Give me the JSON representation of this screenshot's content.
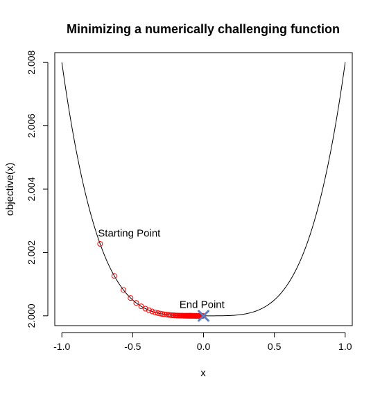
{
  "chart_data": {
    "type": "line",
    "title": "Minimizing a numerically challenging function",
    "xlabel": "x",
    "ylabel": "objective(x)",
    "xlim": [
      -1.05,
      1.05
    ],
    "ylim": [
      1.99969,
      2.00831
    ],
    "x_ticks": [
      -1.0,
      -0.5,
      0.0,
      0.5,
      1.0
    ],
    "x_tick_labels": [
      "-1.0",
      "-0.5",
      "0.0",
      "0.5",
      "1.0"
    ],
    "y_ticks": [
      2.0,
      2.002,
      2.004,
      2.006,
      2.008
    ],
    "y_tick_labels": [
      "2.000",
      "2.002",
      "2.004",
      "2.006",
      "2.008"
    ],
    "grid": false,
    "legend": "none",
    "curve": {
      "name": "",
      "color": "#000000",
      "x_range": [
        -1.0,
        1.0
      ],
      "points": [
        [
          -1.0,
          2.008
        ],
        [
          -0.9,
          2.00525
        ],
        [
          -0.8,
          2.00328
        ],
        [
          -0.73,
          2.00227
        ],
        [
          -0.6,
          2.00104
        ],
        [
          -0.5,
          2.0005
        ],
        [
          -0.4,
          2.0002
        ],
        [
          -0.3,
          2.00006
        ],
        [
          -0.2,
          2.000013
        ],
        [
          -0.1,
          2.0000008
        ],
        [
          0.0,
          2.0
        ],
        [
          0.1,
          2.0000008
        ],
        [
          0.2,
          2.000013
        ],
        [
          0.3,
          2.00006
        ],
        [
          0.4,
          2.0002
        ],
        [
          0.5,
          2.0005
        ],
        [
          0.6,
          2.00104
        ],
        [
          0.73,
          2.00227
        ],
        [
          0.8,
          2.00328
        ],
        [
          0.9,
          2.00525
        ],
        [
          1.0,
          2.008
        ]
      ]
    },
    "iterates": {
      "name": "",
      "color": "#ff0000",
      "marker": "open-circle",
      "x": [
        -0.73,
        -0.63,
        -0.565,
        -0.515,
        -0.475,
        -0.44,
        -0.41,
        -0.385,
        -0.362,
        -0.341,
        -0.322,
        -0.305,
        -0.29,
        -0.276,
        -0.263,
        -0.251,
        -0.24,
        -0.229,
        -0.219,
        -0.21,
        -0.201,
        -0.193,
        -0.185,
        -0.178,
        -0.171,
        -0.164,
        -0.158,
        -0.152,
        -0.146,
        -0.141,
        -0.136,
        -0.131,
        -0.126,
        -0.122,
        -0.118,
        -0.114,
        -0.11,
        -0.106,
        -0.103,
        -0.1,
        -0.097,
        -0.094,
        -0.091,
        -0.088,
        -0.085,
        -0.082,
        -0.079,
        -0.076,
        -0.073,
        -0.07,
        -0.067,
        -0.064,
        -0.061,
        -0.058,
        -0.055,
        -0.052,
        -0.049,
        -0.046,
        -0.043,
        -0.04,
        -0.037,
        -0.034,
        -0.031,
        -0.028,
        -0.025,
        -0.022,
        -0.019,
        -0.016,
        -0.013,
        -0.01,
        -0.007,
        -0.004
      ]
    },
    "end_point": {
      "x": 0.0,
      "y": 2.0,
      "color": "#5b7fc0",
      "marker": "x"
    },
    "annotations": [
      {
        "text": "Starting Point",
        "x": -0.745,
        "y": 2.0025
      },
      {
        "text": "End Point",
        "x": -0.17,
        "y": 2.00025
      }
    ]
  }
}
